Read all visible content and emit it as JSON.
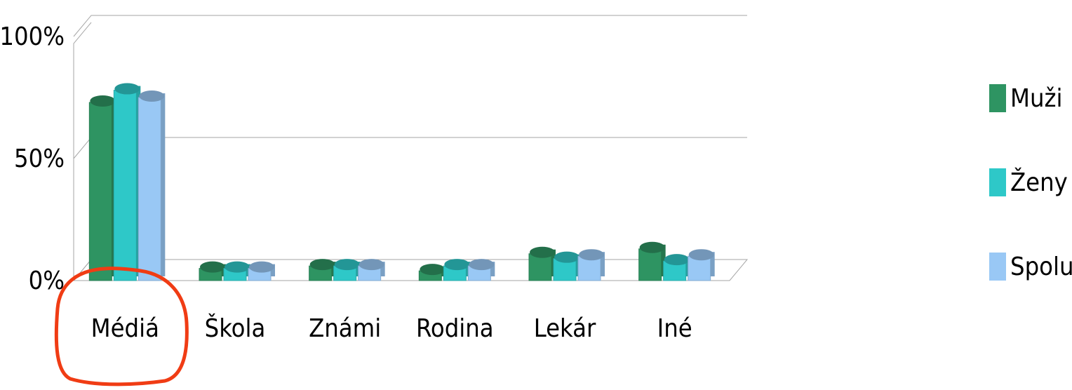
{
  "chart_data": {
    "type": "bar",
    "categories": [
      "Médiá",
      "Škola",
      "Známi",
      "Rodina",
      "Lekár",
      "Iné"
    ],
    "series": [
      {
        "name": "Muži",
        "color": "#2e9462",
        "values": [
          73,
          5,
          6,
          4,
          11,
          13
        ]
      },
      {
        "name": "Ženy",
        "color": "#2ec8c8",
        "values": [
          78,
          5,
          6,
          6,
          9,
          8
        ]
      },
      {
        "name": "Spolu",
        "color": "#99c8f5",
        "values": [
          75,
          5,
          6,
          6,
          10,
          10
        ]
      }
    ],
    "ylim": [
      0,
      100
    ],
    "yticks": [
      {
        "value": 0,
        "label": "0%"
      },
      {
        "value": 50,
        "label": "50%"
      },
      {
        "value": 100,
        "label": "100%"
      }
    ],
    "grid": true,
    "legend": "right"
  }
}
